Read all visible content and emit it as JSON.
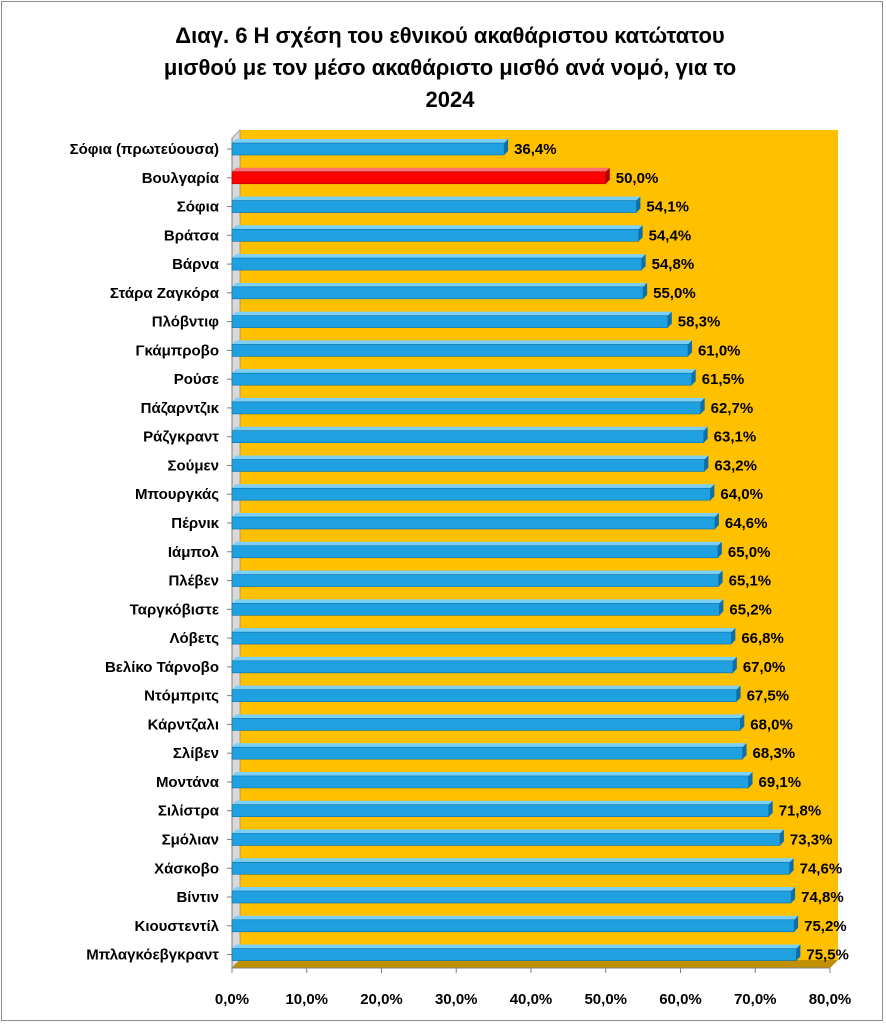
{
  "chart_data": {
    "type": "bar",
    "orientation": "horizontal",
    "title": "Διαγ. 6   Η σχέση του εθνικού ακαθάριστου κατώτατου μισθού με τον μέσο ακαθάριστο μισθό ανά νομό, για το 2024",
    "title_lines": [
      "Διαγ. 6   Η σχέση του εθνικού ακαθάριστου κατώτατου",
      "μισθού με τον μέσο ακαθάριστο μισθό ανά νομό, για το",
      "2024"
    ],
    "categories": [
      "Σόφια (πρωτεύουσα)",
      "Βουλγαρία",
      "Σόφια",
      "Βράτσα",
      "Βάρνα",
      "Στάρα Ζαγκόρα",
      "Πλόβντιφ",
      "Γκάμπροβο",
      "Ρούσε",
      "Πάζαρντζικ",
      "Ράζγκραντ",
      "Σούμεν",
      "Μπουργκάς",
      "Πέρνικ",
      "Ιάμπολ",
      "Πλέβεν",
      "Ταργκόβιστε",
      "Λόβετς",
      "Βελίκο Τάρνοβο",
      "Ντόμπριτς",
      "Κάρντζαλι",
      "Σλίβεν",
      "Μοντάνα",
      "Σιλίστρα",
      "Σμόλιαν",
      "Χάσκοβο",
      "Βίντιν",
      "Κιουστεντίλ",
      "Μπλαγκόεβγκραντ"
    ],
    "values": [
      36.4,
      50.0,
      54.1,
      54.4,
      54.8,
      55.0,
      58.3,
      61.0,
      61.5,
      62.7,
      63.1,
      63.2,
      64.0,
      64.6,
      65.0,
      65.1,
      65.2,
      66.8,
      67.0,
      67.5,
      68.0,
      68.3,
      69.1,
      71.8,
      73.3,
      74.6,
      74.8,
      75.2,
      75.5
    ],
    "value_labels": [
      "36,4%",
      "50,0%",
      "54,1%",
      "54,4%",
      "54,8%",
      "55,0%",
      "58,3%",
      "61,0%",
      "61,5%",
      "62,7%",
      "63,1%",
      "63,2%",
      "64,0%",
      "64,6%",
      "65,0%",
      "65,1%",
      "65,2%",
      "66,8%",
      "67,0%",
      "67,5%",
      "68,0%",
      "68,3%",
      "69,1%",
      "71,8%",
      "73,3%",
      "74,6%",
      "74,8%",
      "75,2%",
      "75,5%"
    ],
    "highlight_index": 1,
    "xlim": [
      0,
      80
    ],
    "xticks": [
      0,
      10,
      20,
      30,
      40,
      50,
      60,
      70,
      80
    ],
    "xtick_labels": [
      "0,0%",
      "10,0%",
      "20,0%",
      "30,0%",
      "40,0%",
      "50,0%",
      "60,0%",
      "70,0%",
      "80,0%"
    ],
    "xlabel": "",
    "ylabel": "",
    "grid": false,
    "legend": "none"
  },
  "colors": {
    "plot_background": "#FFC000",
    "plot_floor": "#C09000",
    "bar": "#1FA0E0",
    "bar_top": "#7DD0F5",
    "bar_end": "#0E6FA8",
    "highlight": "#FF0000",
    "highlight_top": "#FF7070",
    "highlight_end": "#B00000",
    "axis": "#7F7F7F"
  }
}
